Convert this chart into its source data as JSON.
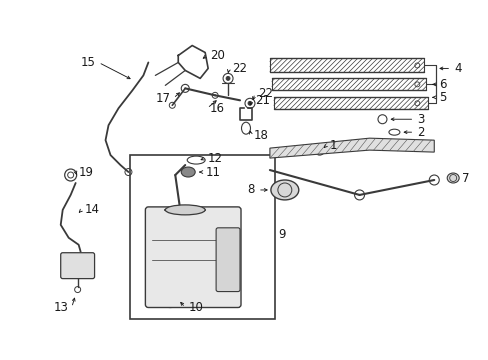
{
  "bg_color": "#ffffff",
  "fig_width": 4.89,
  "fig_height": 3.6,
  "dpi": 100,
  "line_color": "#3a3a3a",
  "text_color": "#1a1a1a",
  "font_size": 8.5
}
